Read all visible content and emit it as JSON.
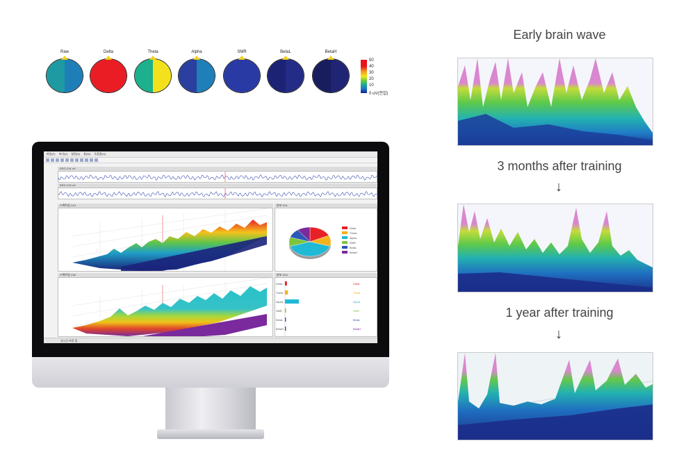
{
  "topomaps": {
    "heads": [
      {
        "label": "Raw",
        "left_color": "#1e9aa2",
        "right_color": "#1e7fb8"
      },
      {
        "label": "Delta",
        "left_color": "#ea1c24",
        "right_color": "#ea1c24"
      },
      {
        "label": "Theta",
        "left_color": "#1db08c",
        "right_color": "#f3e21b"
      },
      {
        "label": "Alpha",
        "left_color": "#2a3fa0",
        "right_color": "#1f7fb8"
      },
      {
        "label": "SMR",
        "left_color": "#2a3aa4",
        "right_color": "#2a3aa4"
      },
      {
        "label": "BetaL",
        "left_color": "#1c2375",
        "right_color": "#232c86"
      },
      {
        "label": "BetaH",
        "left_color": "#181d5e",
        "right_color": "#1f2574"
      }
    ],
    "scale_ticks": [
      "50",
      "40",
      "30",
      "20",
      "10",
      "0 uV(전압)"
    ]
  },
  "software": {
    "menu": [
      "파일(F)",
      "보기(V)",
      "설정(S)",
      "창(W)",
      "도움말(H)"
    ],
    "eeg_top_label": "EEG Ch1 uV",
    "eeg_bottom_label": "EEG Ch2 uV",
    "panel_3d_top": "스펙트럼 Ch1",
    "panel_pie": "분포 Ch1",
    "panel_3d_bottom": "스펙트럼 Ch2",
    "panel_bars": "분포 Ch2",
    "pie_legend": [
      "Delta",
      "Theta",
      "Alpha",
      "SMR",
      "BetaL",
      "BetaH"
    ],
    "pie_values": [
      18,
      12,
      40,
      10,
      10,
      10
    ],
    "pie_colors": [
      "#e82127",
      "#f6b21c",
      "#1fb9d6",
      "#7cc43c",
      "#2b58b7",
      "#7a2a9c"
    ],
    "bar_labels": [
      "Delta",
      "Theta",
      "Alpha",
      "SMR",
      "BetaL",
      "BetaH"
    ],
    "bar_values": [
      2,
      3,
      14,
      1,
      1,
      1
    ],
    "bar_colors": [
      "#e82127",
      "#f6b21c",
      "#1fb9d6",
      "#7cc43c",
      "#2b58b7",
      "#7a2a9c"
    ],
    "status": "실시간 측정 중 ..."
  },
  "stages": [
    {
      "caption": "Early brain wave"
    },
    {
      "caption": "3 months after training"
    },
    {
      "caption": "1 year after training"
    }
  ],
  "arrow_glyph": "↓"
}
